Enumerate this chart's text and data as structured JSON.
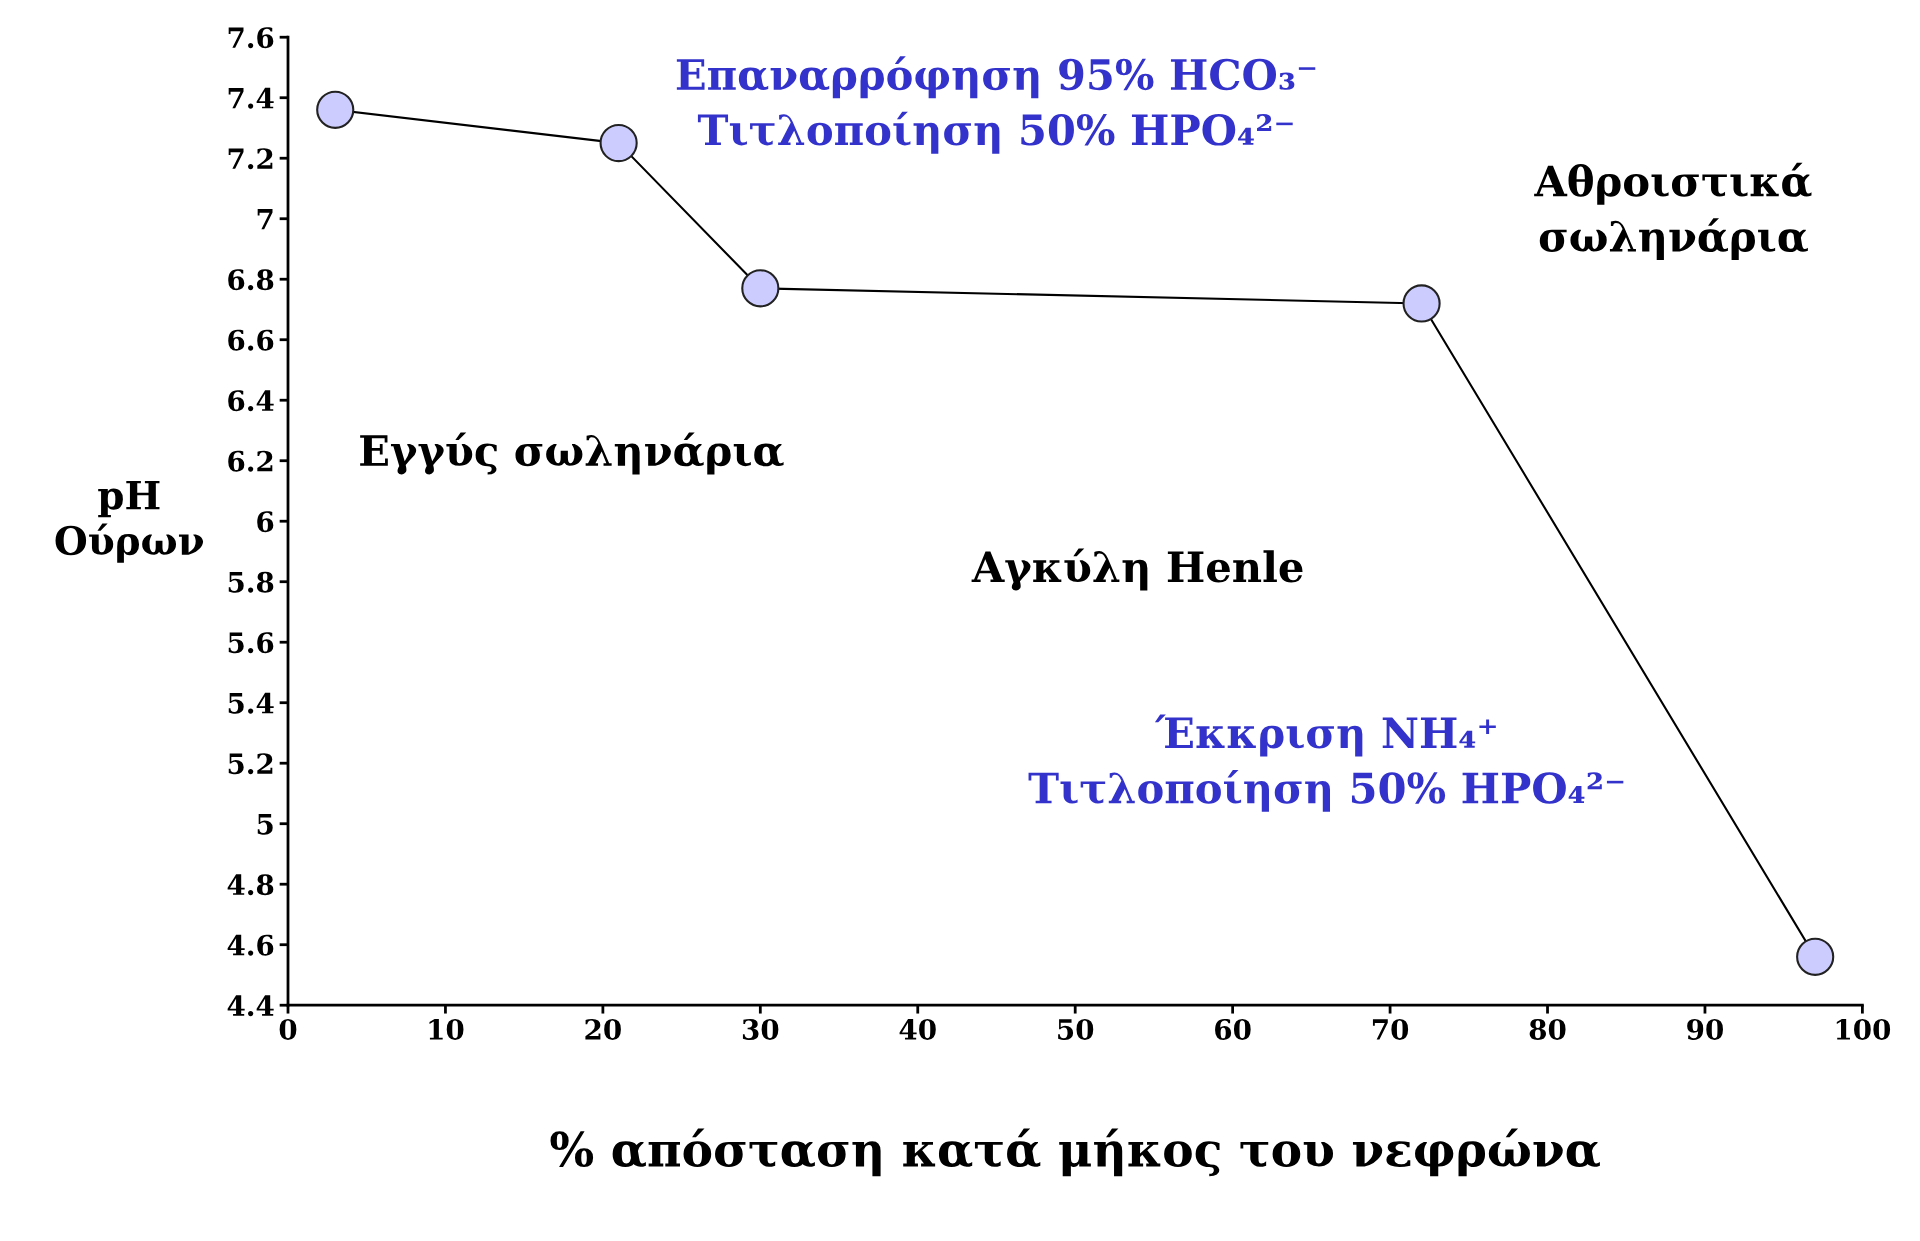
{
  "chart_data": {
    "type": "line",
    "xlabel": "% απόσταση κατά μήκος του νεφρώνα",
    "ylabel": "pH\nΟύρων",
    "x": [
      3,
      21,
      30,
      72,
      97
    ],
    "series": [
      {
        "color": "#000000",
        "values": [
          7.36,
          7.25,
          6.77,
          6.72,
          4.56
        ]
      }
    ],
    "marker": "circle",
    "line_style": "solid",
    "grid": false,
    "legend": false,
    "xlim": [
      0,
      100
    ],
    "xticks": [
      0,
      10,
      20,
      30,
      40,
      50,
      60,
      70,
      80,
      90,
      100
    ],
    "ylim": [
      4.4,
      7.6
    ],
    "yticks": [
      4.4,
      4.6,
      4.8,
      5,
      5.2,
      5.4,
      5.6,
      5.8,
      6,
      6.2,
      6.4,
      6.6,
      6.8,
      7,
      7.2,
      7.4,
      7.6
    ],
    "annotations": [
      "Επαναρρόφηση 95% HCO₃⁻\nΤιτλοποίηση 50% HPO₄²⁻",
      "Αθροιστικά\nσωληνάρια",
      "Εγγύς σωληνάρια",
      "Αγκύλη Henle",
      "Έκκριση NH₄⁺\nΤιτλοποίηση 50% HPO₄²⁻"
    ]
  }
}
